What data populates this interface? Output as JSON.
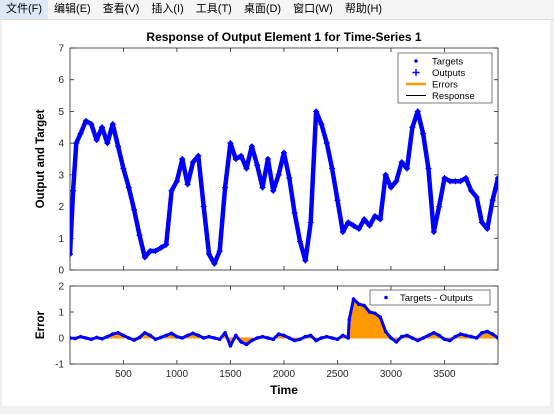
{
  "menubar": {
    "items": [
      {
        "label": "文件(F)",
        "name": "menu-file"
      },
      {
        "label": "编辑(E)",
        "name": "menu-edit"
      },
      {
        "label": "查看(V)",
        "name": "menu-view"
      },
      {
        "label": "插入(I)",
        "name": "menu-insert"
      },
      {
        "label": "工具(T)",
        "name": "menu-tools"
      },
      {
        "label": "桌面(D)",
        "name": "menu-desktop"
      },
      {
        "label": "窗口(W)",
        "name": "menu-window"
      },
      {
        "label": "帮助(H)",
        "name": "menu-help"
      }
    ]
  },
  "colors": {
    "series": "#0000ff",
    "error_fill": "#ff9900",
    "response": "#000000",
    "axes": "#262626"
  },
  "chart_data": [
    {
      "type": "line",
      "title": "Response of Output Element 1 for Time-Series 1",
      "xlabel": "",
      "ylabel": "Output and Target",
      "xlim": [
        1,
        4000
      ],
      "ylim": [
        0,
        7
      ],
      "y_ticks": [
        0,
        1,
        2,
        3,
        4,
        5,
        6,
        7
      ],
      "legend": {
        "position": "top-right",
        "entries": [
          "Targets",
          "Outputs",
          "Errors",
          "Response"
        ]
      },
      "series": [
        {
          "name": "Targets",
          "x": [
            1,
            30,
            60,
            100,
            150,
            200,
            250,
            300,
            350,
            400,
            450,
            500,
            550,
            600,
            650,
            700,
            750,
            800,
            850,
            900,
            950,
            1000,
            1050,
            1100,
            1150,
            1200,
            1250,
            1300,
            1350,
            1400,
            1450,
            1500,
            1550,
            1600,
            1650,
            1700,
            1750,
            1800,
            1850,
            1900,
            1950,
            2000,
            2050,
            2100,
            2150,
            2200,
            2250,
            2300,
            2350,
            2400,
            2450,
            2500,
            2550,
            2600,
            2650,
            2700,
            2750,
            2800,
            2850,
            2900,
            2950,
            3000,
            3050,
            3100,
            3150,
            3200,
            3250,
            3300,
            3350,
            3400,
            3450,
            3500,
            3550,
            3600,
            3650,
            3700,
            3750,
            3800,
            3850,
            3900,
            3950,
            4000
          ],
          "y": [
            0.5,
            2.5,
            4.0,
            4.3,
            4.7,
            4.6,
            4.1,
            4.5,
            4.0,
            4.6,
            3.9,
            3.2,
            2.6,
            1.9,
            1.1,
            0.4,
            0.6,
            0.6,
            0.7,
            0.8,
            2.5,
            2.8,
            3.5,
            2.7,
            3.4,
            3.6,
            2.0,
            0.5,
            0.2,
            0.6,
            2.6,
            4.0,
            3.5,
            3.6,
            3.2,
            3.9,
            3.3,
            2.6,
            3.5,
            2.5,
            3.0,
            3.7,
            2.9,
            1.8,
            0.9,
            0.3,
            1.5,
            5.0,
            4.6,
            4.0,
            3.2,
            2.2,
            1.2,
            1.5,
            1.4,
            1.3,
            1.6,
            1.4,
            1.7,
            1.6,
            3.0,
            2.6,
            2.8,
            3.4,
            3.2,
            4.5,
            5.0,
            4.3,
            3.2,
            1.2,
            2.0,
            2.9,
            2.8,
            2.8,
            2.8,
            2.9,
            2.5,
            2.3,
            1.5,
            1.3,
            2.2,
            2.9
          ]
        },
        {
          "name": "Outputs",
          "x": [
            1,
            30,
            60,
            100,
            150,
            200,
            250,
            300,
            350,
            400,
            450,
            500,
            550,
            600,
            650,
            700,
            750,
            800,
            850,
            900,
            950,
            1000,
            1050,
            1100,
            1150,
            1200,
            1250,
            1300,
            1350,
            1400,
            1450,
            1500,
            1550,
            1600,
            1650,
            1700,
            1750,
            1800,
            1850,
            1900,
            1950,
            2000,
            2050,
            2100,
            2150,
            2200,
            2250,
            2300,
            2350,
            2400,
            2450,
            2500,
            2550,
            2600,
            2650,
            2700,
            2750,
            2800,
            2850,
            2900,
            2950,
            3000,
            3050,
            3100,
            3150,
            3200,
            3250,
            3300,
            3350,
            3400,
            3450,
            3500,
            3550,
            3600,
            3650,
            3700,
            3750,
            3800,
            3850,
            3900,
            3950,
            4000
          ],
          "y": [
            0.5,
            2.5,
            4.0,
            4.3,
            4.7,
            4.6,
            4.1,
            4.5,
            4.0,
            4.6,
            3.9,
            3.2,
            2.6,
            1.9,
            1.1,
            0.4,
            0.6,
            0.6,
            0.7,
            0.8,
            2.5,
            2.8,
            3.5,
            2.7,
            3.4,
            3.6,
            2.0,
            0.5,
            0.2,
            0.6,
            2.6,
            4.0,
            3.5,
            3.6,
            3.2,
            3.9,
            3.3,
            2.6,
            3.5,
            2.5,
            3.0,
            3.7,
            2.9,
            1.8,
            0.9,
            0.3,
            1.5,
            5.0,
            4.6,
            4.0,
            3.2,
            2.2,
            1.2,
            1.5,
            1.4,
            1.3,
            1.6,
            1.4,
            1.7,
            1.6,
            3.0,
            2.6,
            2.8,
            3.4,
            3.2,
            4.5,
            5.0,
            4.3,
            3.2,
            1.2,
            2.0,
            2.9,
            2.8,
            2.8,
            2.8,
            2.9,
            2.5,
            2.3,
            1.5,
            1.3,
            2.2,
            2.9
          ]
        }
      ]
    },
    {
      "type": "line",
      "title": "",
      "xlabel": "Time",
      "ylabel": "Error",
      "xlim": [
        1,
        4000
      ],
      "ylim": [
        -1,
        2
      ],
      "y_ticks": [
        -1,
        0,
        1,
        2
      ],
      "x_ticks": [
        500,
        1000,
        1500,
        2000,
        2500,
        3000,
        3500
      ],
      "legend": {
        "position": "top-right",
        "entries": [
          "Targets - Outputs"
        ]
      },
      "series": [
        {
          "name": "Targets - Outputs",
          "x": [
            1,
            50,
            100,
            150,
            200,
            250,
            300,
            350,
            400,
            450,
            500,
            550,
            600,
            650,
            700,
            750,
            800,
            850,
            900,
            950,
            1000,
            1050,
            1100,
            1150,
            1200,
            1250,
            1300,
            1350,
            1400,
            1450,
            1500,
            1550,
            1600,
            1650,
            1700,
            1750,
            1800,
            1850,
            1900,
            1950,
            2000,
            2050,
            2100,
            2150,
            2200,
            2250,
            2300,
            2350,
            2400,
            2450,
            2500,
            2550,
            2600,
            2610,
            2650,
            2700,
            2750,
            2800,
            2850,
            2900,
            2950,
            3000,
            3050,
            3100,
            3150,
            3200,
            3250,
            3300,
            3350,
            3400,
            3450,
            3500,
            3550,
            3600,
            3650,
            3700,
            3750,
            3800,
            3850,
            3900,
            3950,
            4000
          ],
          "y": [
            0.0,
            -0.02,
            0.05,
            0.0,
            -0.05,
            0.02,
            -0.03,
            0.05,
            0.15,
            0.2,
            0.1,
            0.0,
            -0.08,
            0.02,
            0.2,
            0.1,
            -0.05,
            0.02,
            0.1,
            0.18,
            0.05,
            0.0,
            0.1,
            0.18,
            0.1,
            0.0,
            0.05,
            0.0,
            -0.05,
            0.2,
            -0.3,
            0.1,
            -0.15,
            -0.25,
            -0.1,
            0.0,
            0.05,
            0.0,
            -0.05,
            0.15,
            0.1,
            0.0,
            -0.1,
            -0.05,
            0.05,
            0.1,
            -0.1,
            0.0,
            0.05,
            0.0,
            -0.05,
            0.1,
            0.0,
            0.7,
            1.5,
            1.3,
            1.25,
            1.0,
            0.95,
            0.8,
            0.25,
            0.0,
            -0.15,
            0.05,
            0.1,
            0.0,
            -0.1,
            0.0,
            0.1,
            0.2,
            0.1,
            -0.05,
            -0.1,
            0.05,
            0.15,
            0.1,
            0.05,
            0.0,
            0.2,
            0.25,
            0.15,
            0.0
          ]
        }
      ]
    }
  ]
}
